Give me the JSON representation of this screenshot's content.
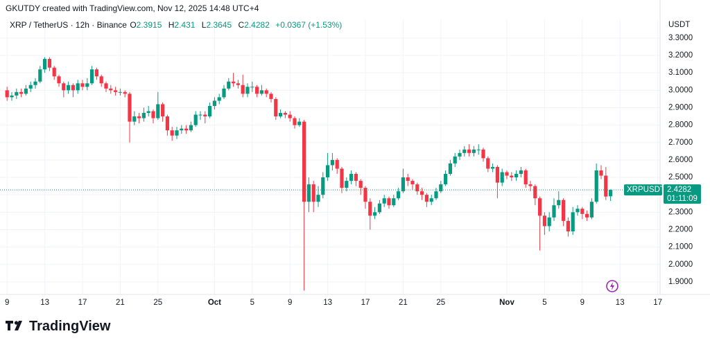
{
  "header": {
    "created": "GKUTDY created with TradingView.com, Nov 12, 2025 14:48 UTC+4",
    "logo": "TradingView"
  },
  "chart_data": {
    "type": "candlestick",
    "title": "XRP / TetherUS · 12h · Binance",
    "ohlc_labels": [
      "O",
      "H",
      "L",
      "C"
    ],
    "change": "+0.0367 (+1.53%)",
    "y_label": "USDT",
    "symbol_tag": "XRPUSDT",
    "countdown": "01:11:09",
    "up_color": "#089981",
    "down_color": "#f23645",
    "grid": true,
    "xlim": [
      -1.5,
      138.5
    ],
    "xticks": [
      {
        "value": 0,
        "label": "9"
      },
      {
        "value": 8,
        "label": "13"
      },
      {
        "value": 16,
        "label": "17"
      },
      {
        "value": 24,
        "label": "21"
      },
      {
        "value": 32,
        "label": "25"
      },
      {
        "value": 44,
        "label": "Oct"
      },
      {
        "value": 52,
        "label": "5"
      },
      {
        "value": 60,
        "label": "9"
      },
      {
        "value": 68,
        "label": "13"
      },
      {
        "value": 76,
        "label": "17"
      },
      {
        "value": 84,
        "label": "21"
      },
      {
        "value": 92,
        "label": "25"
      },
      {
        "value": 106,
        "label": "Nov"
      },
      {
        "value": 114,
        "label": "5"
      },
      {
        "value": 122,
        "label": "9"
      },
      {
        "value": 130,
        "label": "13"
      },
      {
        "value": 138,
        "label": "17"
      }
    ],
    "ylim": [
      1.828,
      3.407
    ],
    "yticks": [
      {
        "value": 1.9,
        "label": "1.9000"
      },
      {
        "value": 2.0,
        "label": "2.0000"
      },
      {
        "value": 2.1,
        "label": "2.1000"
      },
      {
        "value": 2.2,
        "label": "2.2000"
      },
      {
        "value": 2.3,
        "label": "2.3000"
      },
      {
        "value": 2.4,
        "label": "2.4000"
      },
      {
        "value": 2.5,
        "label": "2.5000"
      },
      {
        "value": 2.6,
        "label": "2.6000"
      },
      {
        "value": 2.7,
        "label": "2.7000"
      },
      {
        "value": 2.8,
        "label": "2.8000"
      },
      {
        "value": 2.9,
        "label": "2.9000"
      },
      {
        "value": 3.0,
        "label": "3.0000"
      },
      {
        "value": 3.1,
        "label": "3.1000"
      },
      {
        "value": 3.2,
        "label": "3.2000"
      },
      {
        "value": 3.3,
        "label": "3.3000"
      }
    ],
    "open": [
      3.0,
      2.96,
      2.97,
      2.99,
      2.98,
      3.01,
      3.03,
      3.05,
      3.12,
      3.18,
      3.13,
      3.08,
      3.04,
      3.0,
      3.03,
      3.0,
      3.04,
      3.02,
      3.04,
      3.12,
      3.08,
      3.04,
      3.01,
      3.0,
      2.99,
      2.99,
      2.98,
      2.82,
      2.85,
      2.84,
      2.87,
      2.88,
      2.84,
      2.92,
      2.85,
      2.77,
      2.74,
      2.77,
      2.78,
      2.77,
      2.8,
      2.86,
      2.86,
      2.85,
      2.91,
      2.94,
      2.96,
      3.01,
      3.05,
      3.04,
      3.03,
      2.98,
      3.02,
      3.02,
      2.98,
      3.0,
      2.98,
      2.95,
      2.85,
      2.87,
      2.86,
      2.84,
      2.8,
      2.82,
      2.36,
      2.46,
      2.36,
      2.4,
      2.5,
      2.57,
      2.6,
      2.55,
      2.44,
      2.48,
      2.52,
      2.48,
      2.44,
      2.36,
      2.28,
      2.3,
      2.35,
      2.38,
      2.34,
      2.38,
      2.42,
      2.5,
      2.48,
      2.46,
      2.42,
      2.4,
      2.36,
      2.38,
      2.42,
      2.46,
      2.52,
      2.58,
      2.62,
      2.64,
      2.66,
      2.64,
      2.66,
      2.66,
      2.61,
      2.55,
      2.56,
      2.47,
      2.53,
      2.51,
      2.5,
      2.52,
      2.54,
      2.46,
      2.45,
      2.38,
      2.28,
      2.22,
      2.27,
      2.34,
      2.37,
      2.25,
      2.19,
      2.3,
      2.32,
      2.29,
      2.27,
      2.36,
      2.54,
      2.51,
      2.3915
    ],
    "high": [
      3.02,
      2.99,
      3.01,
      3.01,
      3.03,
      3.05,
      3.07,
      3.14,
      3.19,
      3.19,
      3.14,
      3.09,
      3.05,
      3.05,
      3.04,
      3.06,
      3.06,
      3.07,
      3.14,
      3.13,
      3.09,
      3.05,
      3.03,
      3.02,
      3.01,
      3.0,
      2.99,
      2.88,
      2.87,
      2.9,
      2.91,
      2.89,
      2.99,
      2.93,
      2.86,
      2.79,
      2.79,
      2.8,
      2.8,
      2.82,
      2.88,
      2.88,
      2.88,
      2.93,
      2.96,
      2.98,
      3.03,
      3.07,
      3.1,
      3.06,
      3.09,
      3.04,
      3.05,
      3.03,
      3.03,
      3.01,
      2.99,
      2.96,
      2.89,
      2.88,
      2.88,
      2.85,
      2.84,
      2.83,
      2.5,
      2.48,
      2.45,
      2.53,
      2.64,
      2.64,
      2.61,
      2.56,
      2.5,
      2.54,
      2.53,
      2.49,
      2.45,
      2.38,
      2.33,
      2.37,
      2.4,
      2.39,
      2.4,
      2.44,
      2.55,
      2.52,
      2.49,
      2.47,
      2.44,
      2.41,
      2.4,
      2.44,
      2.48,
      2.54,
      2.6,
      2.64,
      2.66,
      2.68,
      2.69,
      2.68,
      2.69,
      2.67,
      2.62,
      2.58,
      2.57,
      2.55,
      2.54,
      2.53,
      2.54,
      2.56,
      2.55,
      2.48,
      2.46,
      2.39,
      2.3,
      2.3,
      2.38,
      2.42,
      2.38,
      2.27,
      2.33,
      2.34,
      2.33,
      2.31,
      2.38,
      2.58,
      2.57,
      2.56,
      2.431
    ],
    "low": [
      2.94,
      2.94,
      2.95,
      2.96,
      2.97,
      2.99,
      3.01,
      3.04,
      3.1,
      3.11,
      3.06,
      3.02,
      2.96,
      2.98,
      2.96,
      2.98,
      3.0,
      3.0,
      3.03,
      3.06,
      3.02,
      2.99,
      2.98,
      2.97,
      2.97,
      2.96,
      2.7,
      2.8,
      2.81,
      2.82,
      2.85,
      2.81,
      2.83,
      2.82,
      2.74,
      2.71,
      2.72,
      2.75,
      2.75,
      2.76,
      2.79,
      2.83,
      2.81,
      2.84,
      2.89,
      2.92,
      2.95,
      3.0,
      3.02,
      3.01,
      2.96,
      2.96,
      2.99,
      2.96,
      2.97,
      2.96,
      2.93,
      2.83,
      2.84,
      2.84,
      2.82,
      2.78,
      2.79,
      1.85,
      2.3,
      2.3,
      2.33,
      2.38,
      2.48,
      2.54,
      2.52,
      2.41,
      2.42,
      2.46,
      2.45,
      2.4,
      2.32,
      2.2,
      2.26,
      2.29,
      2.33,
      2.32,
      2.33,
      2.37,
      2.41,
      2.45,
      2.43,
      2.4,
      2.37,
      2.33,
      2.34,
      2.37,
      2.41,
      2.45,
      2.51,
      2.56,
      2.6,
      2.62,
      2.62,
      2.62,
      2.63,
      2.59,
      2.53,
      2.53,
      2.38,
      2.45,
      2.49,
      2.48,
      2.48,
      2.5,
      2.44,
      2.42,
      2.34,
      2.08,
      2.17,
      2.19,
      2.25,
      2.32,
      2.22,
      2.16,
      2.17,
      2.28,
      2.26,
      2.25,
      2.26,
      2.35,
      2.49,
      2.37,
      2.3645
    ],
    "close": [
      2.96,
      2.97,
      2.99,
      2.98,
      3.01,
      3.03,
      3.05,
      3.12,
      3.18,
      3.13,
      3.08,
      3.04,
      3.0,
      3.03,
      3.0,
      3.04,
      3.02,
      3.04,
      3.12,
      3.08,
      3.04,
      3.01,
      3.0,
      2.99,
      2.99,
      2.98,
      2.82,
      2.85,
      2.84,
      2.87,
      2.88,
      2.84,
      2.92,
      2.85,
      2.77,
      2.74,
      2.77,
      2.78,
      2.77,
      2.8,
      2.86,
      2.86,
      2.85,
      2.91,
      2.94,
      2.96,
      3.01,
      3.05,
      3.04,
      3.03,
      2.98,
      3.02,
      3.02,
      2.98,
      3.0,
      2.98,
      2.95,
      2.85,
      2.87,
      2.86,
      2.84,
      2.8,
      2.82,
      2.36,
      2.46,
      2.36,
      2.4,
      2.5,
      2.57,
      2.6,
      2.55,
      2.44,
      2.48,
      2.52,
      2.48,
      2.44,
      2.36,
      2.28,
      2.3,
      2.35,
      2.38,
      2.34,
      2.38,
      2.42,
      2.5,
      2.48,
      2.46,
      2.42,
      2.4,
      2.36,
      2.38,
      2.42,
      2.46,
      2.52,
      2.58,
      2.62,
      2.64,
      2.66,
      2.64,
      2.66,
      2.66,
      2.61,
      2.55,
      2.56,
      2.47,
      2.53,
      2.51,
      2.5,
      2.52,
      2.54,
      2.46,
      2.45,
      2.38,
      2.28,
      2.22,
      2.27,
      2.34,
      2.37,
      2.25,
      2.19,
      2.3,
      2.32,
      2.29,
      2.27,
      2.36,
      2.54,
      2.51,
      2.39,
      2.4282
    ]
  }
}
